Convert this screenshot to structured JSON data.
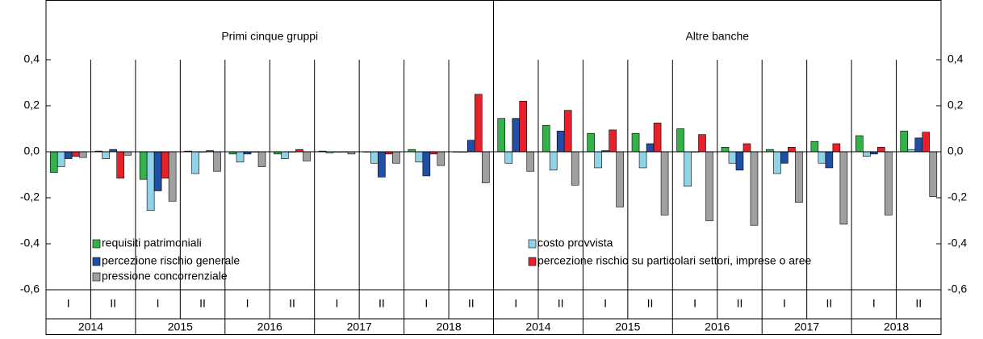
{
  "chart_data": {
    "type": "bar",
    "panels": [
      "Primi cinque gruppi",
      "Altre banche"
    ],
    "years": [
      "2014",
      "2015",
      "2016",
      "2017",
      "2018",
      "2014",
      "2015",
      "2016",
      "2017",
      "2018"
    ],
    "categories": [
      "I",
      "II",
      "I",
      "II",
      "I",
      "II",
      "I",
      "II",
      "I",
      "II",
      "I",
      "II",
      "I",
      "II",
      "I",
      "II",
      "I",
      "II",
      "I",
      "II"
    ],
    "series": [
      {
        "name": "requisiti patrimoniali",
        "color": "#33b24a",
        "values": [
          -0.09,
          0.003,
          -0.12,
          0.003,
          -0.01,
          -0.01,
          0.003,
          0,
          0.01,
          0,
          0.145,
          0.115,
          0.08,
          0.08,
          0.1,
          0.02,
          0.01,
          0.045,
          0.07,
          0.09
        ]
      },
      {
        "name": "costo provvista",
        "color": "#8fd3e8",
        "values": [
          -0.065,
          -0.03,
          -0.255,
          -0.095,
          -0.045,
          -0.03,
          -0.005,
          -0.05,
          -0.045,
          0,
          -0.05,
          -0.08,
          -0.07,
          -0.07,
          -0.15,
          -0.05,
          -0.095,
          -0.05,
          -0.02,
          0.01
        ]
      },
      {
        "name": "percezione rischio generale",
        "color": "#1f4ea3",
        "values": [
          -0.03,
          0.01,
          -0.17,
          0,
          -0.01,
          0,
          0,
          -0.11,
          -0.105,
          0.05,
          0.145,
          0.09,
          0.005,
          0.035,
          0,
          -0.08,
          -0.05,
          -0.07,
          -0.01,
          0.06
        ]
      },
      {
        "name": "percezione rischio su particolari settori, imprese o aree",
        "color": "#e8202a",
        "values": [
          -0.02,
          -0.115,
          -0.115,
          0.005,
          0,
          0.01,
          0,
          -0.01,
          -0.01,
          0.25,
          0.22,
          0.18,
          0.095,
          0.125,
          0.075,
          0.035,
          0.02,
          0.035,
          0.02,
          0.085
        ]
      },
      {
        "name": "pressione concorrenziale",
        "color": "#a0a0a0",
        "values": [
          -0.025,
          -0.015,
          -0.215,
          -0.085,
          -0.065,
          -0.04,
          -0.01,
          -0.05,
          -0.06,
          -0.135,
          -0.085,
          -0.145,
          -0.24,
          -0.275,
          -0.3,
          -0.32,
          -0.22,
          -0.315,
          -0.275,
          -0.195
        ]
      }
    ],
    "ylim": [
      -0.6,
      0.6
    ],
    "yticks": [
      {
        "value": 0.4,
        "label": "0,4"
      },
      {
        "value": 0.2,
        "label": "0,2"
      },
      {
        "value": 0,
        "label": "0,0"
      },
      {
        "value": -0.2,
        "label": "-0,2"
      },
      {
        "value": -0.4,
        "label": "-0,4"
      },
      {
        "value": -0.6,
        "label": "-0,6"
      }
    ]
  }
}
